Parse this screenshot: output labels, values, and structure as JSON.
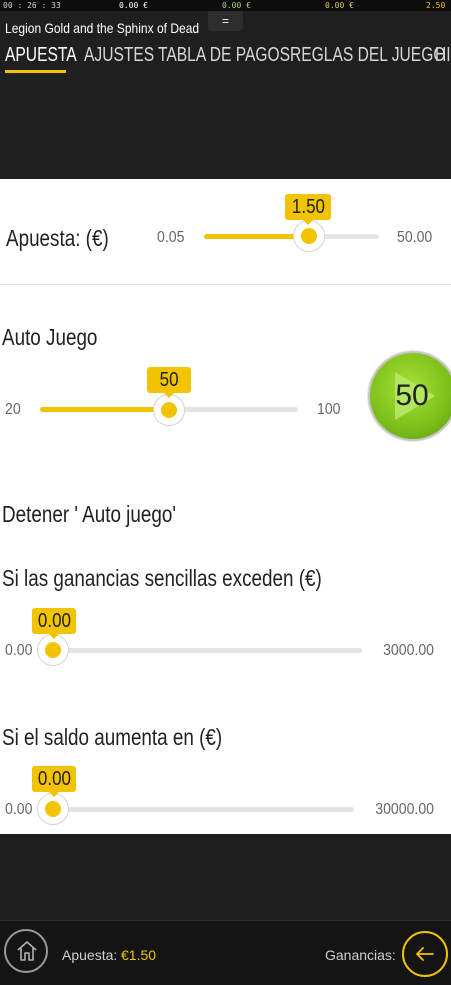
{
  "status_bar": {
    "time": "00 : 26 : 33",
    "value1": "0.00 €",
    "value2": "0.00 €",
    "value3": "0.00 €",
    "value4": "2.50 €"
  },
  "header": {
    "game_title": "Legion Gold and the Sphinx of Dead",
    "menu_handle": "="
  },
  "tabs": [
    {
      "label": "APUESTA",
      "active": true
    },
    {
      "label": "AJUSTES",
      "active": false
    },
    {
      "label": "TABLA DE PAGOS",
      "active": false
    },
    {
      "label": "REGLAS DEL JUEGO",
      "active": false
    },
    {
      "label": "HI",
      "active": false
    }
  ],
  "bet": {
    "label": "Apuesta: (€)",
    "min": "0.05",
    "max": "50.00",
    "value": "1.50",
    "fraction": 0.6
  },
  "auto_play": {
    "label": "Auto Juego",
    "min": "20",
    "max": "100",
    "value": "50",
    "fraction": 0.5,
    "play_button_value": "50"
  },
  "stop_auto": {
    "title": "Detener ' Auto juego'"
  },
  "single_win": {
    "label": "Si las ganancias sencillas exceden (€)",
    "min": "0.00",
    "max": "3000.00",
    "value": "0.00",
    "fraction": 0
  },
  "balance_increase": {
    "label": "Si el saldo aumenta en (€)",
    "min": "0.00",
    "max": "30000.00",
    "value": "0.00",
    "fraction": 0
  },
  "bottom_bar": {
    "bet_label": "Apuesta:",
    "bet_value": "€1.50",
    "winnings_label": "Ganancias:"
  },
  "colors": {
    "accent": "#f2c300",
    "play_green": "#7fc21b",
    "dark_bg": "#1e1e1e"
  }
}
